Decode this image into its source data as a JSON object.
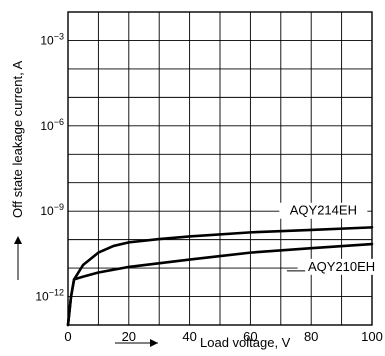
{
  "chart_data": {
    "type": "line",
    "title": "",
    "xlabel": "Load voltage, V",
    "ylabel": "Off state leakage current, A",
    "xlim": [
      0,
      100
    ],
    "x_ticks": [
      0,
      20,
      40,
      60,
      80,
      100
    ],
    "y_scale": "log",
    "ylim": [
      1e-13,
      0.01
    ],
    "y_tick_labels": [
      {
        "value": 0.001,
        "base": "10",
        "exp": "−3"
      },
      {
        "value": 1e-06,
        "base": "10",
        "exp": "−6"
      },
      {
        "value": 1e-09,
        "base": "10",
        "exp": "−9"
      },
      {
        "value": 1e-12,
        "base": "10",
        "exp": "−12"
      }
    ],
    "grid": true,
    "legend": "inline labels on curves",
    "series": [
      {
        "name": "AQY214EH",
        "x": [
          0,
          1,
          2,
          5,
          10,
          15,
          20,
          30,
          40,
          60,
          80,
          100
        ],
        "y": [
          1e-13,
          1e-12,
          4e-12,
          1.3e-11,
          3.5e-11,
          6e-11,
          8e-11,
          1.05e-10,
          1.3e-10,
          1.8e-10,
          2.2e-10,
          2.7e-10
        ]
      },
      {
        "name": "AQY210EH",
        "x": [
          0,
          1,
          2,
          5,
          10,
          20,
          40,
          60,
          80,
          100
        ],
        "y": [
          1e-13,
          1e-12,
          4e-12,
          5e-12,
          7e-12,
          1.1e-11,
          2e-11,
          3.5e-11,
          5e-11,
          7e-11
        ]
      }
    ]
  }
}
